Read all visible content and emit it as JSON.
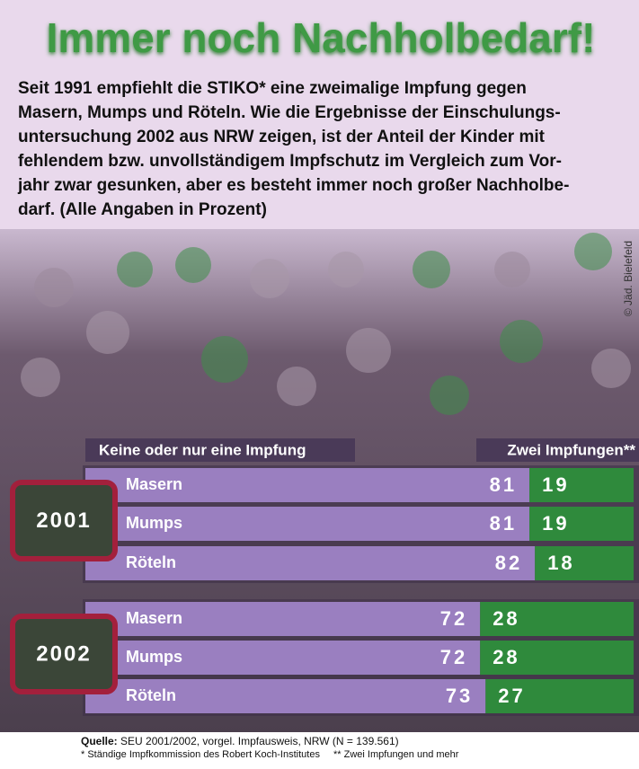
{
  "chart_data": {
    "type": "bar",
    "orientation": "horizontal",
    "stacked": true,
    "title": "Immer noch Nachholbedarf!",
    "subtitle_lines": [
      "Seit 1991 empfiehlt die STIKO* eine zweimalige Impfung gegen",
      "Masern, Mumps und Röteln. Wie die Ergebnisse der Einschulungs-",
      "untersuchung 2002 aus NRW zeigen, ist der Anteil der Kinder mit",
      "fehlendem bzw. unvollständigem Impfschutz im Vergleich zum Vor-",
      "jahr zwar gesunken, aber es besteht immer noch großer Nachholbe-",
      "darf. (Alle Angaben in Prozent)"
    ],
    "groups": [
      "2001",
      "2002"
    ],
    "categories": [
      "Masern",
      "Mumps",
      "Röteln",
      "Masern",
      "Mumps",
      "Röteln"
    ],
    "series": [
      {
        "name": "Keine oder nur eine Impfung",
        "color": "#9a7fc0",
        "values": [
          81,
          81,
          82,
          72,
          72,
          73
        ]
      },
      {
        "name": "Zwei Impfungen**",
        "color": "#2f8a3c",
        "values": [
          19,
          19,
          18,
          28,
          28,
          27
        ]
      }
    ],
    "photo_credit": "© Jäd. Bielefeld",
    "source_label": "Quelle:",
    "source": "SEU 2001/2002, vorgel. Impfausweis, NRW (N = 139.561)",
    "footnotes": [
      "* Ständige Impfkommission des Robert Koch-Institutes",
      "** Zwei Impfungen und mehr"
    ]
  }
}
